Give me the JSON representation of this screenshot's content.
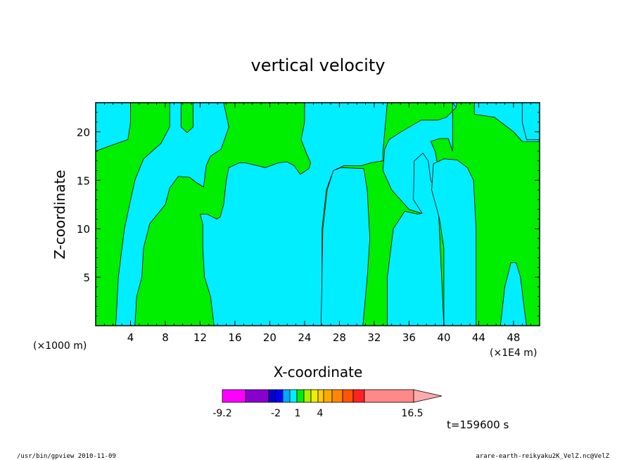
{
  "chart_data": {
    "type": "contour",
    "title": "vertical velocity",
    "xlabel": "X-coordinate",
    "ylabel": "Z-coordinate",
    "x_unit_note_left": "(×1000 m)",
    "x_unit_note_right": "(×1E4 m)",
    "xlim": [
      0,
      51
    ],
    "ylim": [
      0,
      23
    ],
    "x_ticks": [
      4,
      8,
      12,
      16,
      20,
      24,
      28,
      32,
      36,
      40,
      44,
      48
    ],
    "y_ticks": [
      5,
      10,
      15,
      20
    ],
    "fields": {
      "cyan": "#00eeff",
      "green": "#00ee00"
    },
    "cyan_regions": [
      [
        [
          0,
          18
        ],
        [
          1.5,
          18.5
        ],
        [
          3.7,
          19.2
        ],
        [
          4,
          21
        ],
        [
          4,
          23
        ],
        [
          0,
          23
        ]
      ],
      [
        [
          2.3,
          0
        ],
        [
          2.6,
          5
        ],
        [
          3.3,
          10
        ],
        [
          4.5,
          15
        ],
        [
          5.5,
          17.2
        ],
        [
          7.5,
          18.8
        ],
        [
          8.5,
          20.5
        ],
        [
          8.5,
          23
        ],
        [
          9.8,
          23
        ],
        [
          9.8,
          20.5
        ],
        [
          10.5,
          19.9
        ],
        [
          11.2,
          20.5
        ],
        [
          11.2,
          23
        ],
        [
          14.7,
          23
        ],
        [
          15.3,
          20.5
        ],
        [
          14.4,
          18.2
        ],
        [
          13.2,
          17.5
        ],
        [
          12.7,
          16.5
        ],
        [
          12.4,
          14.3
        ],
        [
          11.5,
          14.8
        ],
        [
          10.8,
          15.3
        ],
        [
          9.5,
          15.4
        ],
        [
          8.5,
          14.2
        ],
        [
          8,
          12.5
        ],
        [
          6.2,
          10.5
        ],
        [
          5.5,
          8
        ],
        [
          5.3,
          5
        ],
        [
          4.7,
          3
        ],
        [
          4.5,
          0
        ]
      ],
      [
        [
          13.6,
          0
        ],
        [
          13.2,
          3
        ],
        [
          12.5,
          5
        ],
        [
          12.3,
          8
        ],
        [
          12.3,
          10.5
        ],
        [
          12,
          11.5
        ],
        [
          12.8,
          11.5
        ],
        [
          13.9,
          11
        ],
        [
          14.3,
          11.2
        ],
        [
          14.7,
          12.5
        ],
        [
          15,
          15
        ],
        [
          15.3,
          16.3
        ],
        [
          16.5,
          16.8
        ],
        [
          17.2,
          16.8
        ],
        [
          19.5,
          16.3
        ],
        [
          21,
          16.8
        ],
        [
          22,
          16.9
        ],
        [
          22.8,
          16.5
        ],
        [
          23.5,
          15.6
        ],
        [
          24.5,
          16.2
        ],
        [
          24.7,
          16.8
        ],
        [
          24.2,
          17.8
        ],
        [
          23.6,
          19.2
        ],
        [
          24,
          21
        ],
        [
          24,
          23
        ],
        [
          41,
          23
        ],
        [
          41.4,
          22.5
        ],
        [
          40.3,
          21.5
        ],
        [
          39.3,
          21.2
        ],
        [
          37.4,
          21.2
        ],
        [
          35.1,
          20
        ],
        [
          33.7,
          19.2
        ],
        [
          33.2,
          18.2
        ],
        [
          33,
          16
        ],
        [
          34,
          14
        ],
        [
          36,
          12
        ],
        [
          37.7,
          11.5
        ],
        [
          38.2,
          13
        ],
        [
          38.8,
          15
        ],
        [
          39.3,
          16.5
        ],
        [
          39,
          18
        ],
        [
          38.5,
          19
        ],
        [
          39.5,
          19.3
        ],
        [
          40.5,
          19.3
        ],
        [
          41,
          18
        ],
        [
          41,
          23
        ],
        [
          43.5,
          23
        ],
        [
          43.5,
          21.8
        ],
        [
          45.8,
          21.5
        ],
        [
          48,
          20
        ],
        [
          49,
          19
        ],
        [
          51,
          19
        ],
        [
          51,
          23
        ],
        [
          41,
          23
        ],
        [
          41.4,
          22.5
        ],
        [
          41.5,
          23
        ],
        [
          33.5,
          23
        ],
        [
          33,
          18
        ],
        [
          33,
          17
        ],
        [
          31.6,
          16.8
        ],
        [
          30.5,
          16.5
        ],
        [
          28.5,
          16.5
        ],
        [
          27.3,
          16
        ],
        [
          26.5,
          14
        ],
        [
          26,
          10
        ],
        [
          26,
          0
        ]
      ],
      [
        [
          30.7,
          0
        ],
        [
          31.2,
          5
        ],
        [
          31.5,
          9
        ],
        [
          31.2,
          14
        ],
        [
          30.8,
          16.2
        ],
        [
          28.2,
          16.3
        ],
        [
          27.3,
          16
        ],
        [
          26.6,
          14
        ],
        [
          26.1,
          10
        ],
        [
          25.9,
          0
        ]
      ],
      [
        [
          33.5,
          0
        ],
        [
          33.5,
          5
        ],
        [
          34.2,
          10
        ],
        [
          35.5,
          11.8
        ],
        [
          37,
          11.5
        ],
        [
          37.5,
          11.6
        ],
        [
          36.5,
          13
        ],
        [
          36.6,
          17
        ],
        [
          37.6,
          17.8
        ],
        [
          38.2,
          17
        ],
        [
          38.5,
          15
        ],
        [
          39.3,
          13.5
        ],
        [
          40,
          0
        ]
      ],
      [
        [
          40,
          0
        ],
        [
          40,
          8
        ],
        [
          39.5,
          11
        ],
        [
          38.6,
          14
        ],
        [
          38.8,
          16.7
        ],
        [
          40,
          17.2
        ],
        [
          41.5,
          17.1
        ],
        [
          42.7,
          16.3
        ],
        [
          43.4,
          15
        ],
        [
          43.7,
          10
        ],
        [
          43.7,
          0
        ]
      ],
      [
        [
          46.5,
          0
        ],
        [
          47,
          4
        ],
        [
          47.7,
          6.5
        ],
        [
          48.3,
          6.5
        ],
        [
          48.8,
          5
        ],
        [
          49.2,
          2
        ],
        [
          49.5,
          0
        ]
      ],
      [
        [
          51,
          0
        ],
        [
          51,
          23
        ],
        [
          49,
          23
        ],
        [
          49,
          21
        ],
        [
          49.5,
          19.2
        ],
        [
          51,
          19.2
        ]
      ]
    ],
    "colorbar": {
      "labels": [
        "-9.2",
        "-2",
        "1",
        "4",
        "16.5"
      ],
      "colors": [
        "#ff00ff",
        "#8800cc",
        "#0000cc",
        "#0000ff",
        "#00aaff",
        "#00eeff",
        "#00ee00",
        "#aaee00",
        "#eeee00",
        "#ffcc00",
        "#ffaa00",
        "#ff8800",
        "#ff5500",
        "#ff2222",
        "#ff8888"
      ]
    },
    "time_label": "t=159600 s"
  },
  "footer": {
    "left": "/usr/bin/gpview  2010-11-09",
    "right": "arare-earth-reikyaku2K_VelZ.nc@VelZ"
  }
}
